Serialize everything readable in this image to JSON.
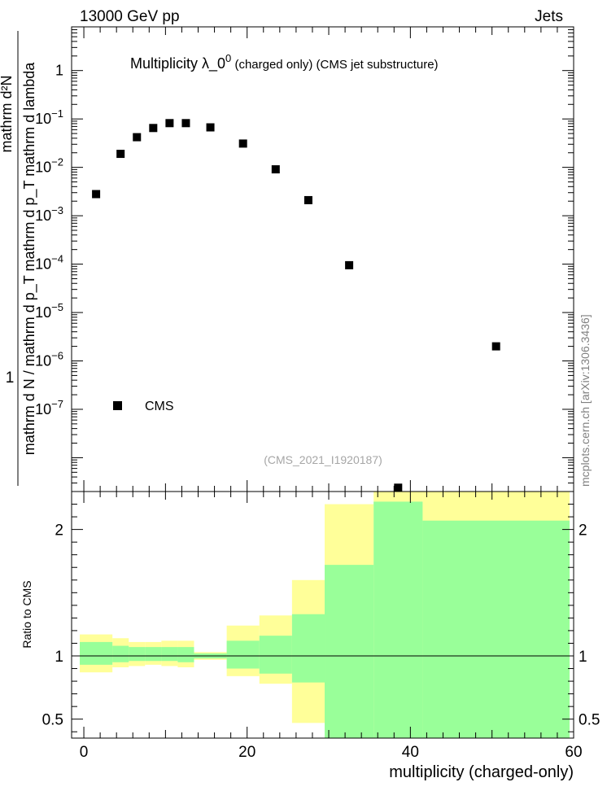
{
  "header": {
    "left": "13000 GeV pp",
    "right": "Jets"
  },
  "side_label": "mcplots.cern.ch [arXiv:1306.3436]",
  "watermark": "(CMS_2021_I1920187)",
  "chart_data": [
    {
      "type": "scatter",
      "title_main": "Multiplicity  λ_0",
      "title_sup": "0",
      "title_rest": " (charged only) (CMS jet substructure)",
      "xlabel": "multiplicity (charged-only)",
      "ylabel_num": "mathrm d²N",
      "ylabel_den": "mathrm d N / mathrm d p_T mathrm d p_T mathrm d lambda",
      "ylabel_prefix": "1",
      "yscale": "log",
      "xlim": [
        -1.5,
        60
      ],
      "ylim": [
        2e-09,
        8
      ],
      "legend": {
        "label": "CMS",
        "position": "bottom-left"
      },
      "ytick_labels": [
        {
          "v": 1,
          "t": "1"
        },
        {
          "v": 0.1,
          "t": "10",
          "sup": "−1"
        },
        {
          "v": 0.01,
          "t": "10",
          "sup": "−2"
        },
        {
          "v": 0.001,
          "t": "10",
          "sup": "−3"
        },
        {
          "v": 0.0001,
          "t": "10",
          "sup": "−4"
        },
        {
          "v": 1e-05,
          "t": "10",
          "sup": "−5"
        },
        {
          "v": 1e-06,
          "t": "10",
          "sup": "−6"
        },
        {
          "v": 1e-07,
          "t": "10",
          "sup": "−7"
        }
      ],
      "series": [
        {
          "name": "CMS",
          "x": [
            1.5,
            4.5,
            6.5,
            8.5,
            10.5,
            12.5,
            15.5,
            19.5,
            23.5,
            27.5,
            32.5,
            38.5,
            50.5
          ],
          "y": [
            0.0028,
            0.019,
            0.042,
            0.065,
            0.082,
            0.082,
            0.067,
            0.031,
            0.0091,
            0.0021,
            9.5e-05,
            2.4e-09,
            2e-06
          ]
        }
      ]
    },
    {
      "type": "area",
      "ylabel": "Ratio to CMS",
      "xlabel": "multiplicity (charged-only)",
      "ylim": [
        0.35,
        2.3
      ],
      "xlim": [
        -1.5,
        60
      ],
      "xtick_labels": [
        {
          "v": 0,
          "t": "0"
        },
        {
          "v": 20,
          "t": "20"
        },
        {
          "v": 40,
          "t": "40"
        },
        {
          "v": 60,
          "t": "60"
        }
      ],
      "ytick_labels": [
        {
          "v": 0.5,
          "t": "0.5"
        },
        {
          "v": 1,
          "t": "1"
        },
        {
          "v": 2,
          "t": "2"
        }
      ],
      "bands": [
        {
          "x0": -0.5,
          "x1": 3.5,
          "inner": [
            0.93,
            1.11
          ],
          "outer": [
            0.87,
            1.17
          ]
        },
        {
          "x0": 3.5,
          "x1": 5.5,
          "inner": [
            0.95,
            1.08
          ],
          "outer": [
            0.91,
            1.14
          ]
        },
        {
          "x0": 5.5,
          "x1": 7.5,
          "inner": [
            0.96,
            1.07
          ],
          "outer": [
            0.92,
            1.11
          ]
        },
        {
          "x0": 7.5,
          "x1": 9.5,
          "inner": [
            0.96,
            1.07
          ],
          "outer": [
            0.93,
            1.11
          ]
        },
        {
          "x0": 9.5,
          "x1": 11.5,
          "inner": [
            0.96,
            1.07
          ],
          "outer": [
            0.92,
            1.12
          ]
        },
        {
          "x0": 11.5,
          "x1": 13.5,
          "inner": [
            0.95,
            1.07
          ],
          "outer": [
            0.91,
            1.12
          ]
        },
        {
          "x0": 13.5,
          "x1": 17.5,
          "inner": [
            0.98,
            1.02
          ],
          "outer": [
            0.97,
            1.03
          ]
        },
        {
          "x0": 17.5,
          "x1": 21.5,
          "inner": [
            0.9,
            1.12
          ],
          "outer": [
            0.84,
            1.24
          ]
        },
        {
          "x0": 21.5,
          "x1": 25.5,
          "inner": [
            0.86,
            1.16
          ],
          "outer": [
            0.78,
            1.32
          ]
        },
        {
          "x0": 25.5,
          "x1": 29.5,
          "inner": [
            0.79,
            1.33
          ],
          "outer": [
            0.47,
            1.6
          ]
        },
        {
          "x0": 29.5,
          "x1": 35.5,
          "inner": [
            0.35,
            1.72
          ],
          "outer": [
            0.35,
            2.2
          ]
        },
        {
          "x0": 35.5,
          "x1": 41.5,
          "inner": [
            0.35,
            2.22
          ],
          "outer": [
            0.35,
            2.3
          ]
        },
        {
          "x0": 41.5,
          "x1": 59.5,
          "inner": [
            0.35,
            2.07
          ],
          "outer": [
            0.35,
            2.3
          ]
        }
      ]
    }
  ]
}
